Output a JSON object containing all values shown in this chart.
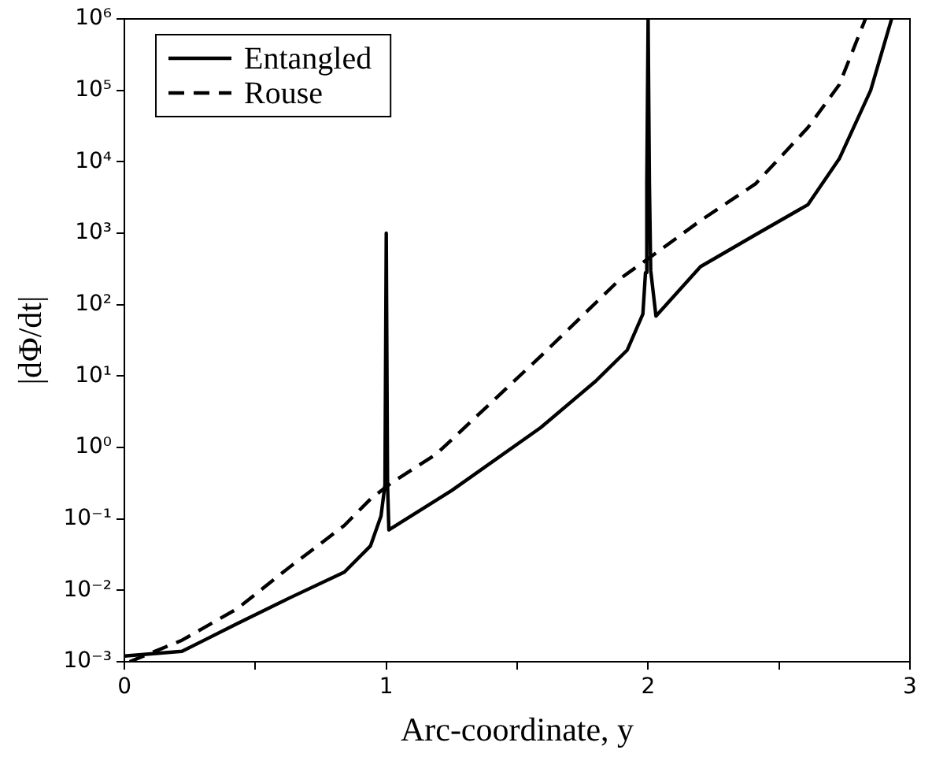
{
  "chart_data": {
    "type": "line",
    "xlabel": "Arc-coordinate, y",
    "ylabel": "|dΦ/dt|",
    "log": "y",
    "grid": false,
    "legend": "top left",
    "marker": "none",
    "xlim": [
      0,
      3
    ],
    "xticks": [
      0,
      {
        "value": 0.5,
        "label": null
      },
      1,
      {
        "value": 1.5,
        "label": null
      },
      2,
      {
        "value": 2.5,
        "label": null
      },
      3
    ],
    "ylim": [
      0.001,
      1000000
    ],
    "yticks": [
      {
        "value": 0.001,
        "label": "10⁻³"
      },
      {
        "value": 0.01,
        "label": "10⁻²"
      },
      {
        "value": 0.1,
        "label": "10⁻¹"
      },
      {
        "value": 1,
        "label": "10⁰"
      },
      {
        "value": 10,
        "label": "10¹"
      },
      {
        "value": 100,
        "label": "10²"
      },
      {
        "value": 1000,
        "label": "10³"
      },
      {
        "value": 10000,
        "label": "10⁴"
      },
      {
        "value": 100000,
        "label": "10⁵"
      },
      {
        "value": 1000000,
        "label": "10⁶"
      }
    ],
    "series": [
      {
        "name": "Entangled",
        "color": "#000000",
        "line_style": "solid",
        "x": [
          0,
          0.22,
          0.43,
          0.63,
          0.84,
          0.94,
          0.98,
          0.995,
          1.0,
          1.005,
          1.01,
          1.25,
          1.59,
          1.8,
          1.92,
          1.98,
          1.99,
          1.995,
          2.0,
          2.005,
          2.01,
          2.03,
          2.2,
          2.41,
          2.61,
          2.73,
          2.85,
          2.93
        ],
        "values": [
          0.0012,
          0.0014,
          0.0034,
          0.0078,
          0.018,
          0.042,
          0.11,
          0.3,
          1000,
          0.3,
          0.07,
          0.25,
          1.9,
          8.5,
          23,
          74,
          280,
          5000,
          1000000,
          5000,
          300,
          69,
          340,
          950,
          2500,
          11000,
          100000,
          1000000
        ]
      },
      {
        "name": "Rouse",
        "color": "#000000",
        "line_style": "dashed",
        "x": [
          0.02,
          0.22,
          0.43,
          0.63,
          0.84,
          0.94,
          1.02,
          1.19,
          1.59,
          1.9,
          2.04,
          2.2,
          2.41,
          2.61,
          2.73,
          2.83
        ],
        "values": [
          0.001,
          0.002,
          0.0055,
          0.021,
          0.081,
          0.19,
          0.32,
          0.8,
          19,
          240,
          560,
          1500,
          4900,
          30000,
          120000,
          1000000
        ]
      }
    ]
  }
}
